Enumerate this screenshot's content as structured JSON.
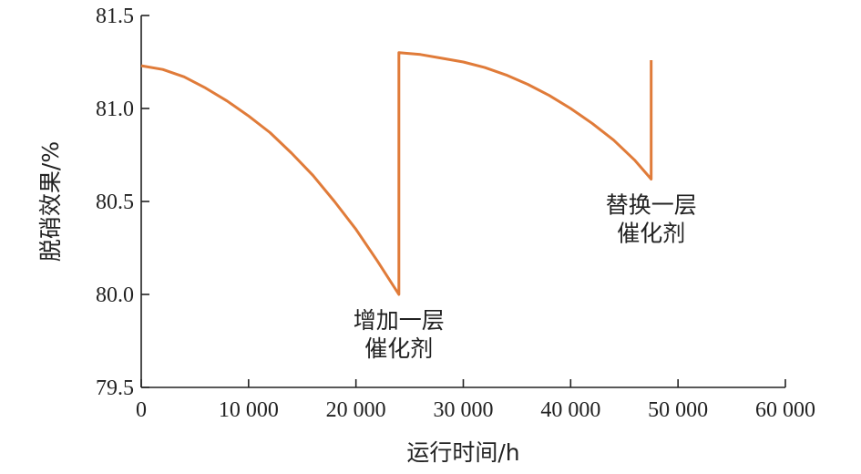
{
  "chart_data": {
    "type": "line",
    "title": "",
    "xlabel": "运行时间/h",
    "ylabel": "脱硝效果/%",
    "xlim": [
      0,
      60000
    ],
    "ylim": [
      79.5,
      81.5
    ],
    "xticks": [
      0,
      10000,
      20000,
      30000,
      40000,
      50000,
      60000
    ],
    "xtick_labels": [
      "0",
      "10 000",
      "20 000",
      "30 000",
      "40 000",
      "50 000",
      "60 000"
    ],
    "yticks": [
      79.5,
      80.0,
      80.5,
      81.0,
      81.5
    ],
    "ytick_labels": [
      "79.5",
      "80.0",
      "80.5",
      "81.0",
      "81.5"
    ],
    "grid": false,
    "series": [
      {
        "color": "#E07B39",
        "x": [
          0,
          2000,
          4000,
          6000,
          8000,
          10000,
          12000,
          14000,
          16000,
          18000,
          20000,
          22000,
          24000,
          24000,
          26000,
          28000,
          30000,
          32000,
          34000,
          36000,
          38000,
          40000,
          42000,
          44000,
          46000,
          47500,
          47500
        ],
        "y": [
          81.23,
          81.21,
          81.17,
          81.11,
          81.04,
          80.96,
          80.87,
          80.76,
          80.64,
          80.5,
          80.35,
          80.18,
          80.0,
          81.3,
          81.29,
          81.27,
          81.25,
          81.22,
          81.18,
          81.13,
          81.07,
          81.0,
          80.92,
          80.83,
          80.72,
          80.62,
          81.26
        ]
      }
    ],
    "annotations": [
      {
        "lines": [
          "增加一层",
          "催化剂"
        ],
        "x": 24000,
        "y": 80.0
      },
      {
        "lines": [
          "替换一层",
          "催化剂"
        ],
        "x": 47500,
        "y": 80.62
      }
    ]
  }
}
